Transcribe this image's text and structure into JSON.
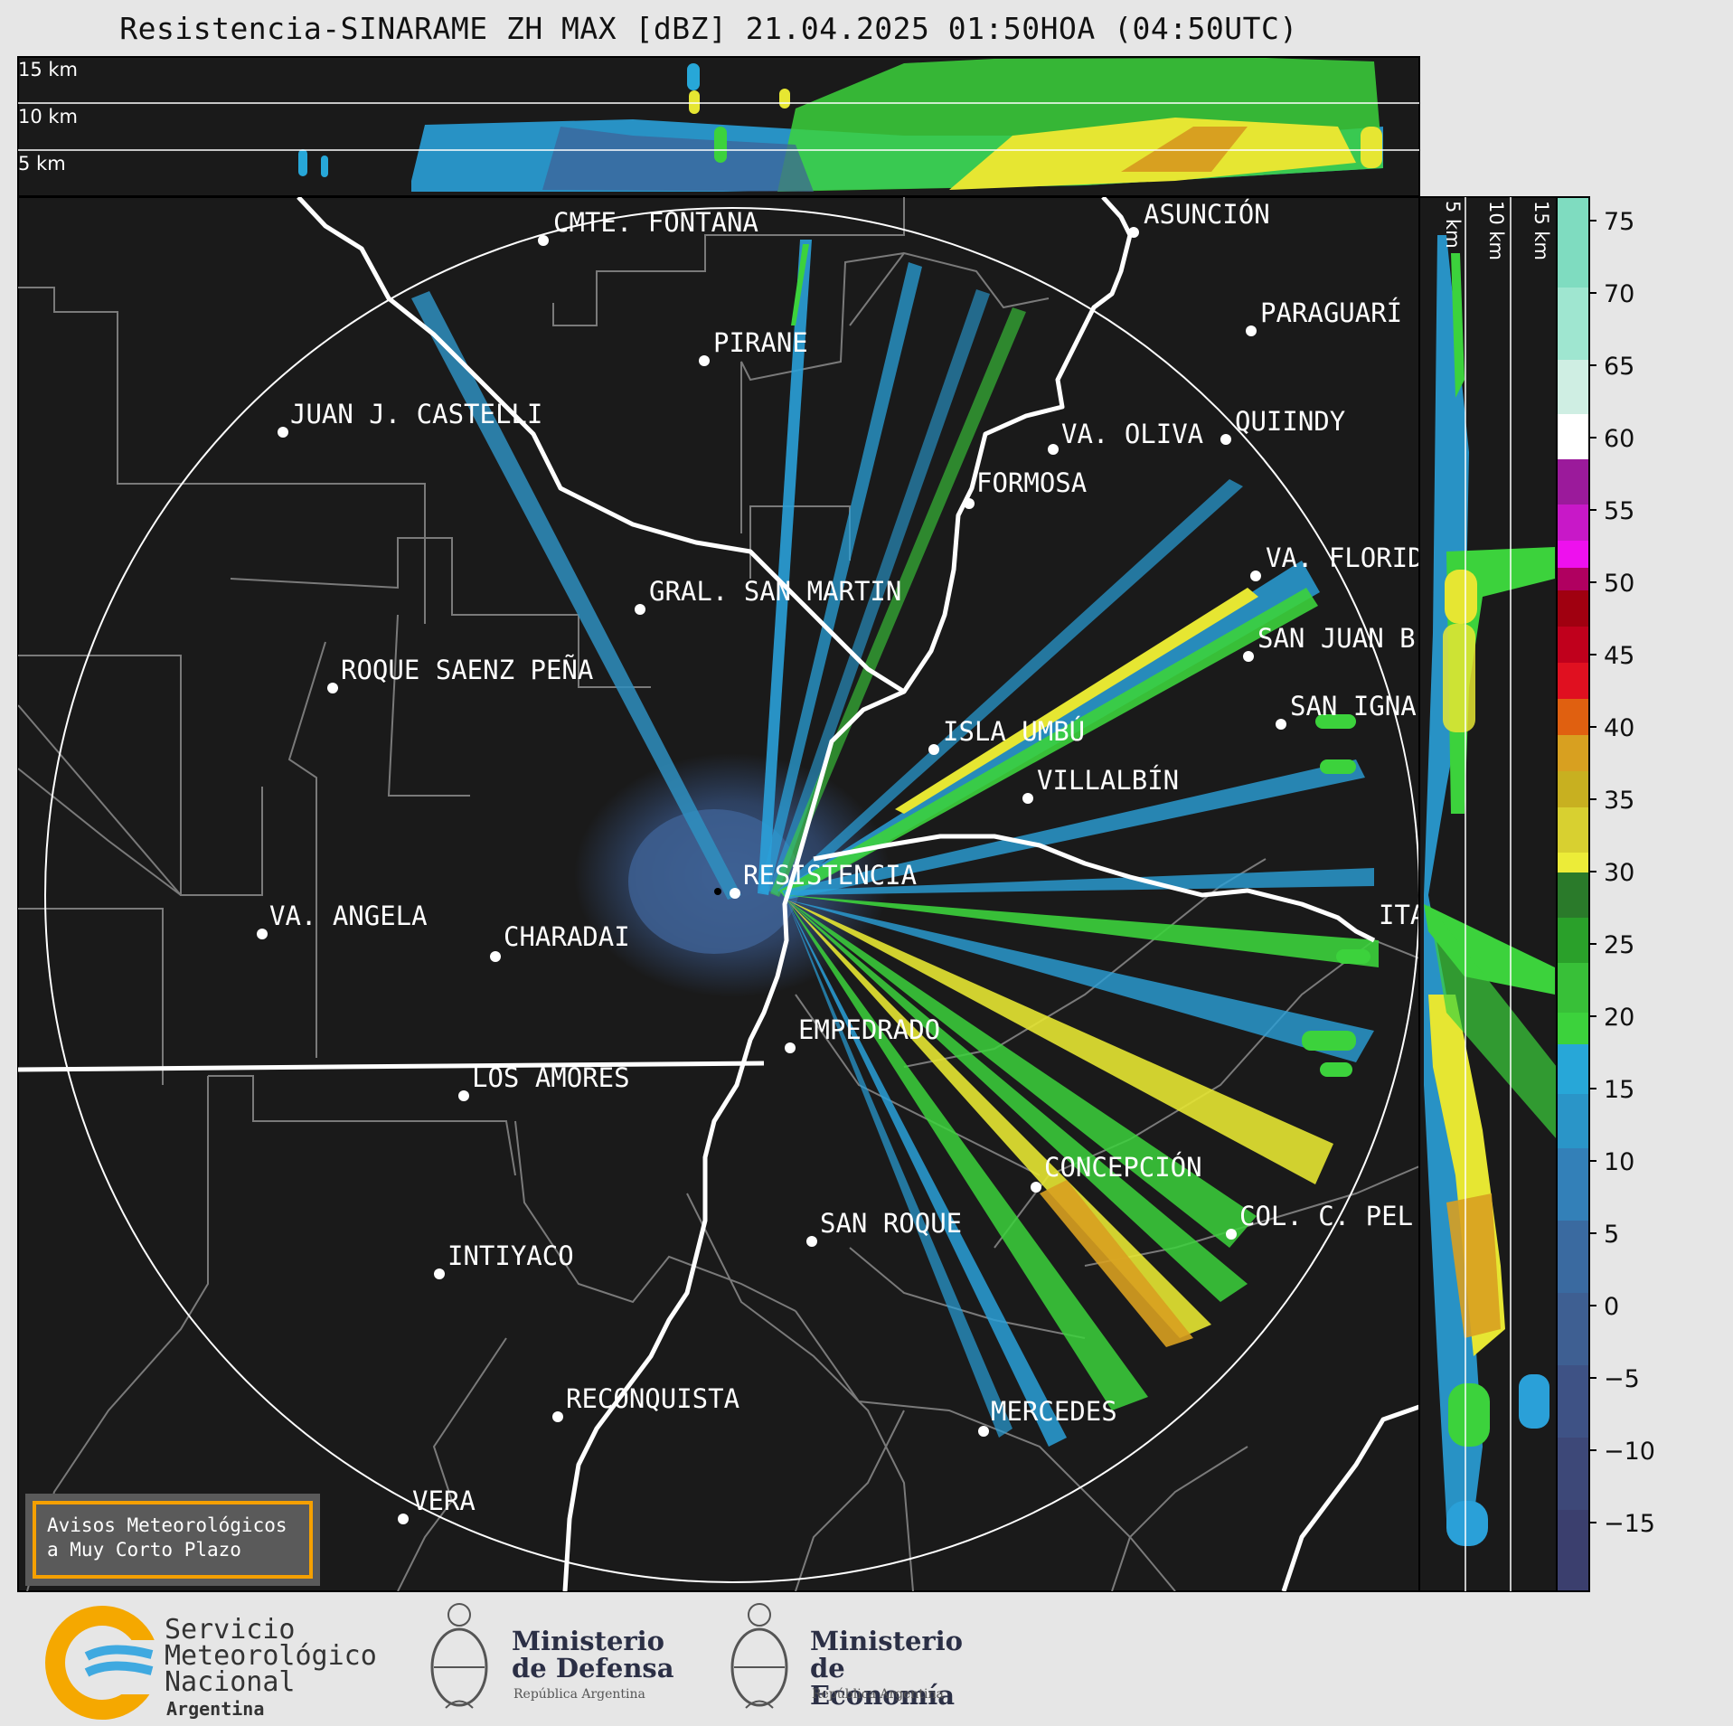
{
  "title": "Resistencia-SINARAME ZH MAX [dBZ] 21.04.2025 01:50HOA (04:50UTC)",
  "top_panel": {
    "height_labels": [
      "15 km",
      "10 km",
      "5 km"
    ]
  },
  "side_panel": {
    "height_labels": [
      "5 km",
      "10 km",
      "15 km"
    ]
  },
  "colorbar": {
    "ticks": [
      "75",
      "70",
      "65",
      "60",
      "55",
      "50",
      "45",
      "40",
      "35",
      "30",
      "25",
      "20",
      "15",
      "10",
      "5",
      "0",
      "−5",
      "−10",
      "−15"
    ],
    "colors": {
      "c1": "#3b3f6e",
      "c2": "#3d4f82",
      "c3": "#3e6195",
      "c4": "#3a77a8",
      "c5": "#2f8fc0",
      "c6": "#27a7d8",
      "c7": "#2aa02a",
      "c8": "#3cd23c",
      "c9": "#e6e632",
      "c10": "#d8a020",
      "c11": "#e06010",
      "c12": "#e01020",
      "c13": "#a00010",
      "c14": "#c000a0",
      "c15": "#e020e0",
      "c16": "#ffffff",
      "c17": "#7fdcc0"
    }
  },
  "cities": [
    {
      "name": "CMTE. FONTANA"
    },
    {
      "name": "ASUNCIÓN"
    },
    {
      "name": "PARAGUARÍ"
    },
    {
      "name": "PIRANE"
    },
    {
      "name": "JUAN J. CASTELLI"
    },
    {
      "name": "VA. OLIVA"
    },
    {
      "name": "QUIINDY"
    },
    {
      "name": "FORMOSA"
    },
    {
      "name": "VA. FLORIDA"
    },
    {
      "name": "GRAL. SAN MARTIN"
    },
    {
      "name": "SAN JUAN B"
    },
    {
      "name": "ROQUE SAENZ PEÑA"
    },
    {
      "name": "SAN IGNA"
    },
    {
      "name": "ISLA UMBÚ"
    },
    {
      "name": "VILLALBÍN"
    },
    {
      "name": "RESISTENCIA"
    },
    {
      "name": "VA. ANGELA"
    },
    {
      "name": "CHARADAI"
    },
    {
      "name": "ITA"
    },
    {
      "name": "EMPEDRADO"
    },
    {
      "name": "LOS AMORES"
    },
    {
      "name": "CONCEPCIÓN"
    },
    {
      "name": "COL. C. PEL"
    },
    {
      "name": "SAN ROQUE"
    },
    {
      "name": "INTIYACO"
    },
    {
      "name": "RECONQUISTA"
    },
    {
      "name": "MERCEDES"
    },
    {
      "name": "VERA"
    }
  ],
  "avisos": {
    "line1": "Avisos Meteorológicos",
    "line2": "a Muy Corto Plazo"
  },
  "footer": {
    "smn_line1": "Servicio",
    "smn_line2": "Meteorológico",
    "smn_line3": "Nacional",
    "smn_sub": "Argentina",
    "defensa_line1": "Ministerio",
    "defensa_line2": "de Defensa",
    "defensa_sub": "República Argentina",
    "economia_line1": "Ministerio",
    "economia_line2": "de Economía",
    "economia_sub": "República Argentina"
  }
}
